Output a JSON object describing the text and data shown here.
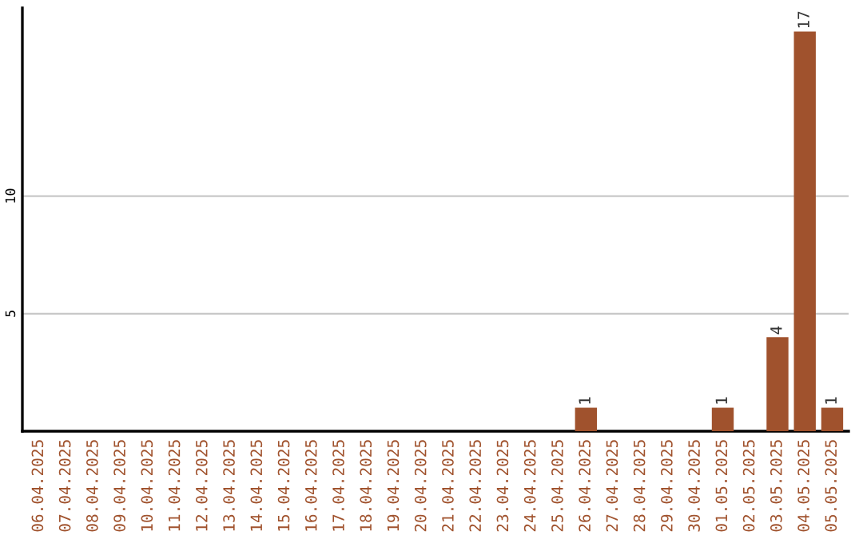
{
  "chart_data": {
    "type": "bar",
    "categories": [
      "06.04.2025",
      "07.04.2025",
      "08.04.2025",
      "09.04.2025",
      "10.04.2025",
      "11.04.2025",
      "12.04.2025",
      "13.04.2025",
      "14.04.2025",
      "15.04.2025",
      "16.04.2025",
      "17.04.2025",
      "18.04.2025",
      "19.04.2025",
      "20.04.2025",
      "21.04.2025",
      "22.04.2025",
      "23.04.2025",
      "24.04.2025",
      "25.04.2025",
      "26.04.2025",
      "27.04.2025",
      "28.04.2025",
      "29.04.2025",
      "30.04.2025",
      "01.05.2025",
      "02.05.2025",
      "03.05.2025",
      "04.05.2025",
      "05.05.2025"
    ],
    "values": [
      0,
      0,
      0,
      0,
      0,
      0,
      0,
      0,
      0,
      0,
      0,
      0,
      0,
      0,
      0,
      0,
      0,
      0,
      0,
      0,
      1,
      0,
      0,
      0,
      0,
      1,
      0,
      4,
      17,
      1
    ],
    "value_labels": [
      null,
      null,
      null,
      null,
      null,
      null,
      null,
      null,
      null,
      null,
      null,
      null,
      null,
      null,
      null,
      null,
      null,
      null,
      null,
      null,
      "1",
      null,
      null,
      null,
      null,
      "1",
      null,
      "4",
      "17",
      "1"
    ],
    "color": "#a0522d",
    "ylim": [
      0,
      18
    ],
    "yticks": [
      5,
      10
    ],
    "grid": "y"
  }
}
